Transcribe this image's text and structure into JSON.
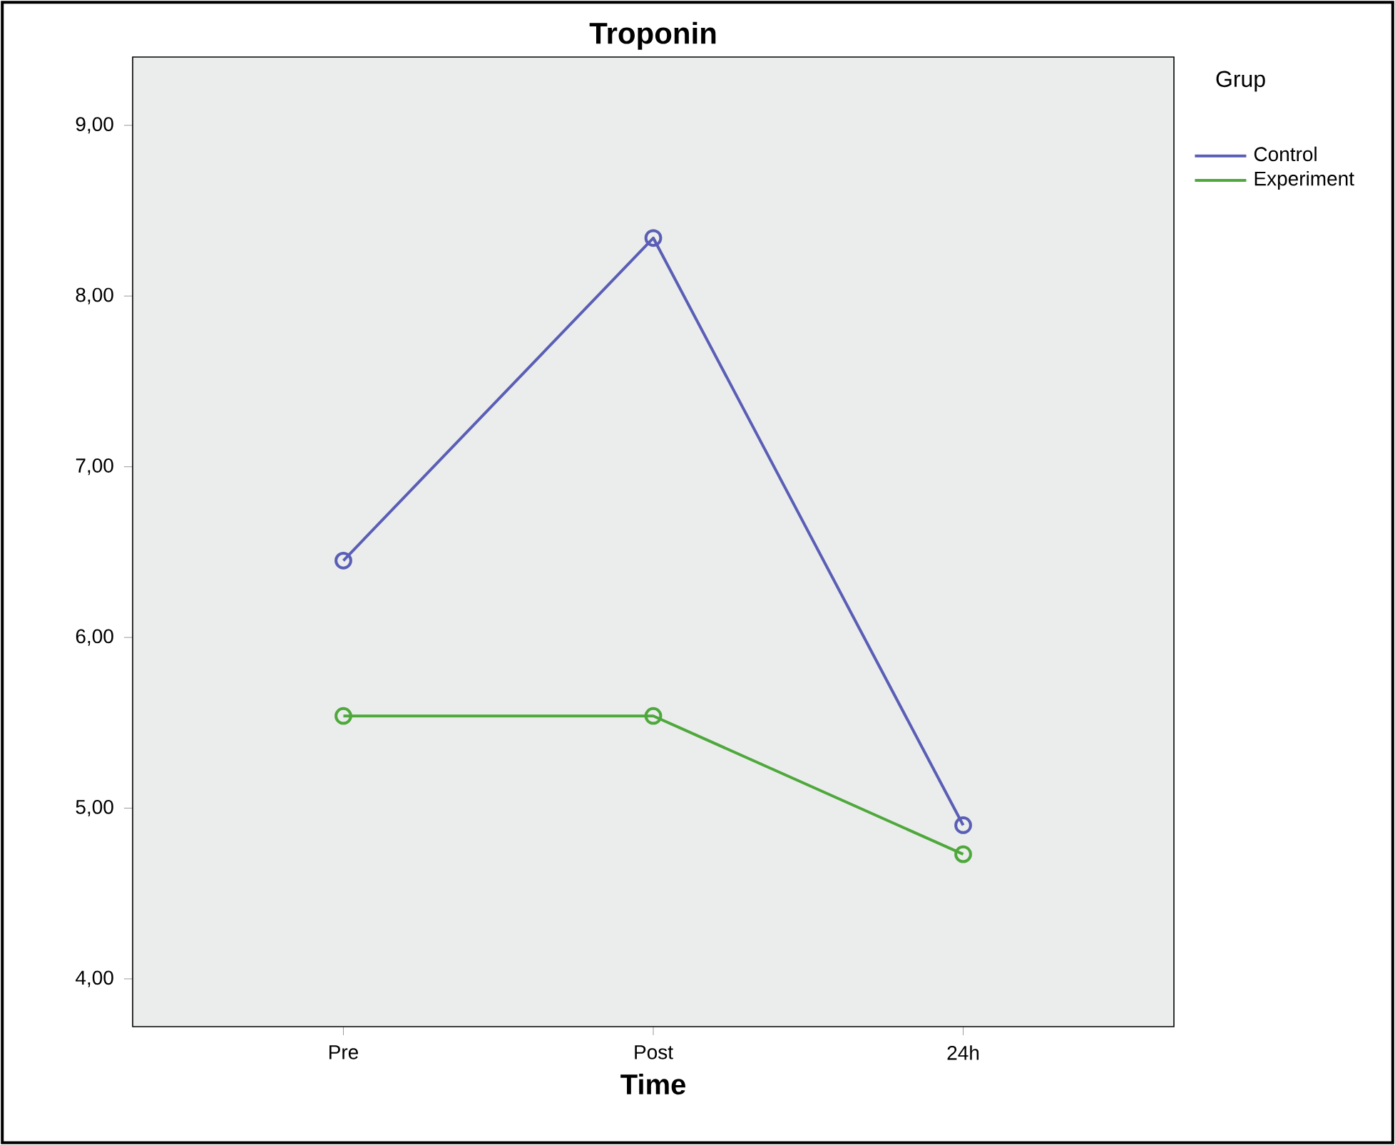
{
  "chart_data": {
    "type": "line",
    "title": "Troponin",
    "xlabel": "Time",
    "legend_title": "Grup",
    "categories": [
      "Pre",
      "Post",
      "24h"
    ],
    "series": [
      {
        "name": "Control",
        "color": "#5a5eb5",
        "values": [
          6.45,
          8.34,
          4.9
        ]
      },
      {
        "name": "Experiment",
        "color": "#4ea83c",
        "values": [
          5.54,
          5.54,
          4.73
        ]
      }
    ],
    "ylim": [
      3.72,
      9.4
    ],
    "yticks": [
      {
        "value": 4,
        "label": "4,00"
      },
      {
        "value": 5,
        "label": "5,00"
      },
      {
        "value": 6,
        "label": "6,00"
      },
      {
        "value": 7,
        "label": "7,00"
      },
      {
        "value": 8,
        "label": "8,00"
      },
      {
        "value": 9,
        "label": "9,00"
      }
    ],
    "marker": "circle",
    "line_style": "solid",
    "legend": "top right",
    "grid": false
  }
}
